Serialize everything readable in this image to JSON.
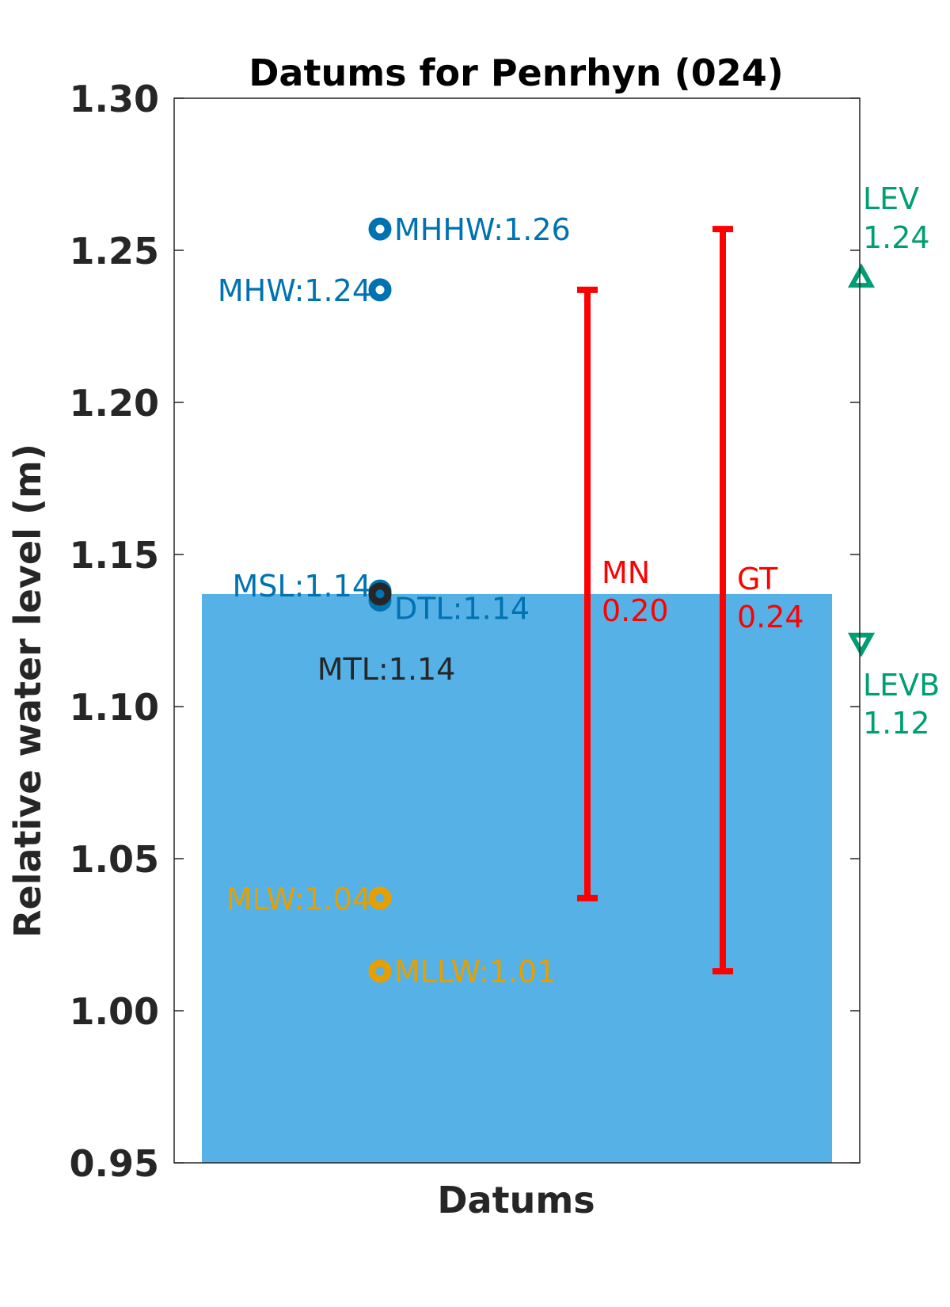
{
  "chart_data": {
    "type": "scatter",
    "title": "Datums for Penrhyn (024)",
    "xlabel": "Datums",
    "ylabel": "Relative water level (m)",
    "ylim": [
      0.95,
      1.3
    ],
    "yticks": [
      "0.95",
      "1.00",
      "1.05",
      "1.10",
      "1.15",
      "1.20",
      "1.25",
      "1.30"
    ],
    "grid": false,
    "background_bar": {
      "value": 1.137,
      "color": "#56b2e6"
    },
    "datums": [
      {
        "name": "MHHW",
        "value": 1.257,
        "label": "MHHW:1.26",
        "color": "#0072b2",
        "label_side": "right"
      },
      {
        "name": "MHW",
        "value": 1.237,
        "label": "MHW:1.24",
        "color": "#0072b2",
        "label_side": "left"
      },
      {
        "name": "MSL",
        "value": 1.138,
        "label": "MSL:1.14",
        "color": "#0072b2",
        "label_side": "left"
      },
      {
        "name": "DTL",
        "value": 1.135,
        "label": "DTL:1.14",
        "color": "#0072b2",
        "label_side": "right"
      },
      {
        "name": "MTL",
        "value": 1.137,
        "label": "MTL:1.14",
        "color": "#262626",
        "label_side": "below"
      },
      {
        "name": "MLW",
        "value": 1.037,
        "label": "MLW:1.04",
        "color": "#e69f00",
        "label_side": "left"
      },
      {
        "name": "MLLW",
        "value": 1.013,
        "label": "MLLW:1.01",
        "color": "#e69f00",
        "label_side": "right"
      }
    ],
    "ranges": [
      {
        "name": "MN",
        "value_label": "0.20",
        "from": 1.037,
        "to": 1.237,
        "color": "#ff0000"
      },
      {
        "name": "GT",
        "value_label": "0.24",
        "from": 1.013,
        "to": 1.257,
        "color": "#ff0000"
      }
    ],
    "extremes": [
      {
        "name": "LEV",
        "value_label": "1.24",
        "value": 1.241,
        "marker": "triangle-up",
        "color": "#009e73"
      },
      {
        "name": "LEVB",
        "value_label": "1.12",
        "value": 1.121,
        "marker": "triangle-down",
        "color": "#009e73"
      }
    ]
  }
}
